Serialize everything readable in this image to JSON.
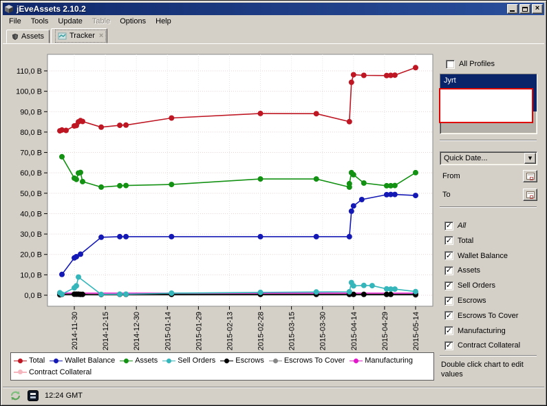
{
  "window": {
    "title": "jEveAssets 2.10.2",
    "controls": {
      "minimize": "minimize",
      "maximize": "maximize",
      "close": "close"
    }
  },
  "menu": {
    "items": [
      {
        "label": "File",
        "disabled": false
      },
      {
        "label": "Tools",
        "disabled": false
      },
      {
        "label": "Update",
        "disabled": false
      },
      {
        "label": "Table",
        "disabled": true
      },
      {
        "label": "Options",
        "disabled": false
      },
      {
        "label": "Help",
        "disabled": false
      }
    ]
  },
  "tabs": [
    {
      "label": "Assets",
      "active": false,
      "closable": false
    },
    {
      "label": "Tracker",
      "active": true,
      "closable": true,
      "close_glyph": "×"
    }
  ],
  "sidebar": {
    "all_profiles_label": "All Profiles",
    "all_profiles_checked": false,
    "profiles": [
      {
        "name": "Jyrt",
        "selected": true
      }
    ],
    "quick_date_value": "Quick Date...",
    "combo_arrow": "▼",
    "from_label": "From",
    "to_label": "To",
    "series_toggles": [
      {
        "label": "All",
        "checked": true,
        "italic": true
      },
      {
        "label": "Total",
        "checked": true
      },
      {
        "label": "Wallet Balance",
        "checked": true
      },
      {
        "label": "Assets",
        "checked": true
      },
      {
        "label": "Sell Orders",
        "checked": true
      },
      {
        "label": "Escrows",
        "checked": true
      },
      {
        "label": "Escrows To Cover",
        "checked": true
      },
      {
        "label": "Manufacturing",
        "checked": true
      },
      {
        "label": "Contract Collateral",
        "checked": true
      }
    ],
    "check_glyph": "✓",
    "hint": "Double click chart to edit values"
  },
  "statusbar": {
    "time": "12:24 GMT"
  },
  "chart_data": {
    "type": "line",
    "title": "",
    "xlabel": "",
    "ylabel": "",
    "grid": true,
    "legend_position": "bottom",
    "y_unit": "B (billions ISK)",
    "ylim": [
      0,
      110
    ],
    "x_ticks": [
      "2014-11-30",
      "2014-12-15",
      "2014-12-30",
      "2015-01-14",
      "2015-01-29",
      "2015-02-13",
      "2015-02-28",
      "2015-03-15",
      "2015-03-30",
      "2015-04-14",
      "2015-04-29",
      "2015-05-14"
    ],
    "y_ticks": [
      {
        "value": 0,
        "label": "0,0 B"
      },
      {
        "value": 10,
        "label": "10,0 B"
      },
      {
        "value": 20,
        "label": "20,0 B"
      },
      {
        "value": 30,
        "label": "30,0 B"
      },
      {
        "value": 40,
        "label": "40,0 B"
      },
      {
        "value": 50,
        "label": "50,0 B"
      },
      {
        "value": 60,
        "label": "60,0 B"
      },
      {
        "value": 70,
        "label": "70,0 B"
      },
      {
        "value": 80,
        "label": "80,0 B"
      },
      {
        "value": 90,
        "label": "90,0 B"
      },
      {
        "value": 100,
        "label": "100,0 B"
      },
      {
        "value": 110,
        "label": "110,0 B"
      }
    ],
    "series": [
      {
        "name": "Total",
        "color": "#be1622",
        "points": [
          [
            "2014-11-23",
            80.6
          ],
          [
            "2014-11-24",
            81.0
          ],
          [
            "2014-11-26",
            80.8
          ],
          [
            "2014-11-30",
            83.0
          ],
          [
            "2014-12-01",
            83.2
          ],
          [
            "2014-12-02",
            85.0
          ],
          [
            "2014-12-03",
            85.6
          ],
          [
            "2014-12-04",
            85.2
          ],
          [
            "2014-12-13",
            82.4
          ],
          [
            "2014-12-22",
            83.3
          ],
          [
            "2014-12-25",
            83.4
          ],
          [
            "2015-01-16",
            86.9
          ],
          [
            "2015-02-28",
            89.1
          ],
          [
            "2015-03-27",
            89.0
          ],
          [
            "2015-04-12",
            85.1
          ],
          [
            "2015-04-13",
            104.4
          ],
          [
            "2015-04-14",
            108.1
          ],
          [
            "2015-04-19",
            107.8
          ],
          [
            "2015-04-30",
            107.7
          ],
          [
            "2015-05-02",
            107.8
          ],
          [
            "2015-05-04",
            107.9
          ],
          [
            "2015-05-14",
            111.6
          ]
        ]
      },
      {
        "name": "Wallet Balance",
        "color": "#1418b4",
        "points": [
          [
            "2014-11-24",
            10.2
          ],
          [
            "2014-11-30",
            18.3
          ],
          [
            "2014-12-01",
            18.9
          ],
          [
            "2014-12-03",
            20.1
          ],
          [
            "2014-12-13",
            28.4
          ],
          [
            "2014-12-22",
            28.7
          ],
          [
            "2014-12-25",
            28.7
          ],
          [
            "2015-01-16",
            28.7
          ],
          [
            "2015-02-28",
            28.7
          ],
          [
            "2015-03-27",
            28.7
          ],
          [
            "2015-04-12",
            28.7
          ],
          [
            "2015-04-13",
            41.2
          ],
          [
            "2015-04-14",
            43.8
          ],
          [
            "2015-04-18",
            46.9
          ],
          [
            "2015-04-30",
            49.3
          ],
          [
            "2015-05-02",
            49.4
          ],
          [
            "2015-05-04",
            49.4
          ],
          [
            "2015-05-14",
            48.9
          ]
        ]
      },
      {
        "name": "Assets",
        "color": "#129112",
        "points": [
          [
            "2014-11-24",
            67.9
          ],
          [
            "2014-11-30",
            57.4
          ],
          [
            "2014-12-01",
            56.8
          ],
          [
            "2014-12-02",
            59.9
          ],
          [
            "2014-12-03",
            60.2
          ],
          [
            "2014-12-04",
            55.7
          ],
          [
            "2014-12-13",
            53.0
          ],
          [
            "2014-12-22",
            53.7
          ],
          [
            "2014-12-25",
            53.8
          ],
          [
            "2015-01-16",
            54.3
          ],
          [
            "2015-02-28",
            57.0
          ],
          [
            "2015-03-27",
            57.0
          ],
          [
            "2015-04-12",
            53.0
          ],
          [
            "2015-04-12",
            54.7
          ],
          [
            "2015-04-13",
            60.1
          ],
          [
            "2015-04-14",
            59.1
          ],
          [
            "2015-04-19",
            55.0
          ],
          [
            "2015-04-30",
            53.7
          ],
          [
            "2015-05-02",
            53.7
          ],
          [
            "2015-05-04",
            53.8
          ],
          [
            "2015-05-14",
            60.1
          ]
        ]
      },
      {
        "name": "Sell Orders",
        "color": "#35b6ba",
        "points": [
          [
            "2014-11-23",
            1.2
          ],
          [
            "2014-11-24",
            0.5
          ],
          [
            "2014-11-30",
            3.6
          ],
          [
            "2014-12-01",
            4.6
          ],
          [
            "2014-12-02",
            8.9
          ],
          [
            "2014-12-13",
            0.4
          ],
          [
            "2014-12-22",
            0.5
          ],
          [
            "2014-12-25",
            0.5
          ],
          [
            "2015-01-16",
            1.0
          ],
          [
            "2015-02-28",
            1.4
          ],
          [
            "2015-03-27",
            1.6
          ],
          [
            "2015-04-12",
            1.7
          ],
          [
            "2015-04-13",
            6.2
          ],
          [
            "2015-04-14",
            4.6
          ],
          [
            "2015-04-19",
            4.8
          ],
          [
            "2015-04-23",
            4.7
          ],
          [
            "2015-04-30",
            3.1
          ],
          [
            "2015-05-02",
            3.0
          ],
          [
            "2015-05-04",
            3.0
          ],
          [
            "2015-05-14",
            1.8
          ]
        ]
      },
      {
        "name": "Escrows",
        "color": "#000000",
        "points": [
          [
            "2014-11-23",
            0.4
          ],
          [
            "2014-11-24",
            0.4
          ],
          [
            "2014-11-30",
            0.5
          ],
          [
            "2014-12-01",
            0.5
          ],
          [
            "2014-12-02",
            0.5
          ],
          [
            "2014-12-03",
            0.4
          ],
          [
            "2014-12-04",
            0.4
          ],
          [
            "2014-12-13",
            0.3
          ],
          [
            "2014-12-22",
            0.4
          ],
          [
            "2014-12-25",
            0.4
          ],
          [
            "2015-01-16",
            0.4
          ],
          [
            "2015-02-28",
            0.4
          ],
          [
            "2015-03-27",
            0.4
          ],
          [
            "2015-04-12",
            0.4
          ],
          [
            "2015-04-14",
            0.4
          ],
          [
            "2015-04-19",
            0.4
          ],
          [
            "2015-04-30",
            0.4
          ],
          [
            "2015-05-02",
            0.4
          ],
          [
            "2015-05-14",
            0.4
          ]
        ]
      },
      {
        "name": "Escrows To Cover",
        "color": "#868686",
        "points": [
          [
            "2014-11-23",
            0.1
          ],
          [
            "2015-05-14",
            0.1
          ]
        ]
      },
      {
        "name": "Manufacturing",
        "color": "#e217c9",
        "points": [
          [
            "2014-11-23",
            1.0
          ],
          [
            "2015-05-14",
            1.0
          ]
        ]
      },
      {
        "name": "Contract Collateral",
        "color": "#f6b6c0",
        "points": [
          [
            "2014-11-23",
            0.15
          ],
          [
            "2015-05-14",
            0.15
          ]
        ]
      }
    ]
  }
}
